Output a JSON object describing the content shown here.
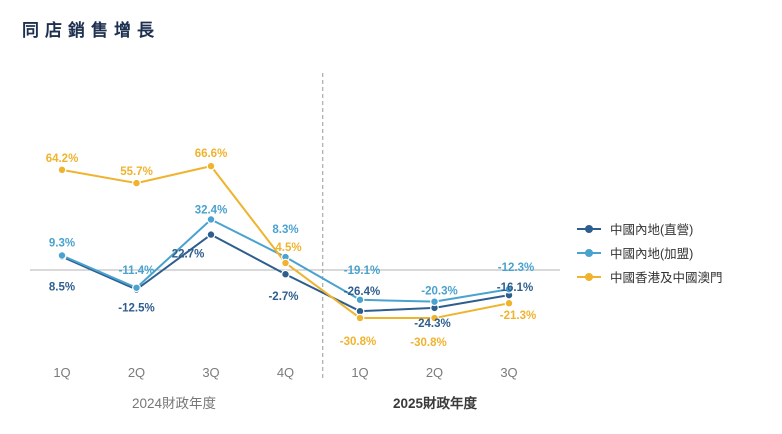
{
  "title": "同店銷售增長",
  "chart_data": {
    "type": "line",
    "categories": [
      "1Q",
      "2Q",
      "3Q",
      "4Q",
      "1Q",
      "2Q",
      "3Q"
    ],
    "x_groups": [
      {
        "label": "2024財政年度",
        "start": 0,
        "end": 3
      },
      {
        "label": "2025財政年度",
        "start": 4,
        "end": 6
      }
    ],
    "series": [
      {
        "name": "中國內地(直營)",
        "color": "#2e5e8e",
        "values": [
          8.5,
          -12.5,
          22.7,
          -2.7,
          -26.4,
          -24.3,
          -16.1
        ],
        "labels": [
          "8.5%",
          "-12.5%",
          "22.7%",
          "-2.7%",
          "-26.4%",
          "-24.3%",
          "-16.1%"
        ]
      },
      {
        "name": "中國內地(加盟)",
        "color": "#4aa2cf",
        "values": [
          9.3,
          -11.4,
          32.4,
          8.3,
          -19.1,
          -20.3,
          -12.3
        ],
        "labels": [
          "9.3%",
          "-11.4%",
          "32.4%",
          "8.3%",
          "-19.1%",
          "-20.3%",
          "-12.3%"
        ]
      },
      {
        "name": "中國香港及中國澳門",
        "color": "#f0b32e",
        "values": [
          64.2,
          55.7,
          66.6,
          4.5,
          -30.8,
          -30.8,
          -21.3
        ],
        "labels": [
          "64.2%",
          "55.7%",
          "66.6%",
          "4.5%",
          "-30.8%",
          "-30.8%",
          "-21.3%"
        ]
      }
    ],
    "unit": "%",
    "ylim": [
      -40,
      80
    ],
    "zero_line": true,
    "separator_between": [
      3,
      4
    ],
    "grid": false,
    "legend_position": "right"
  }
}
